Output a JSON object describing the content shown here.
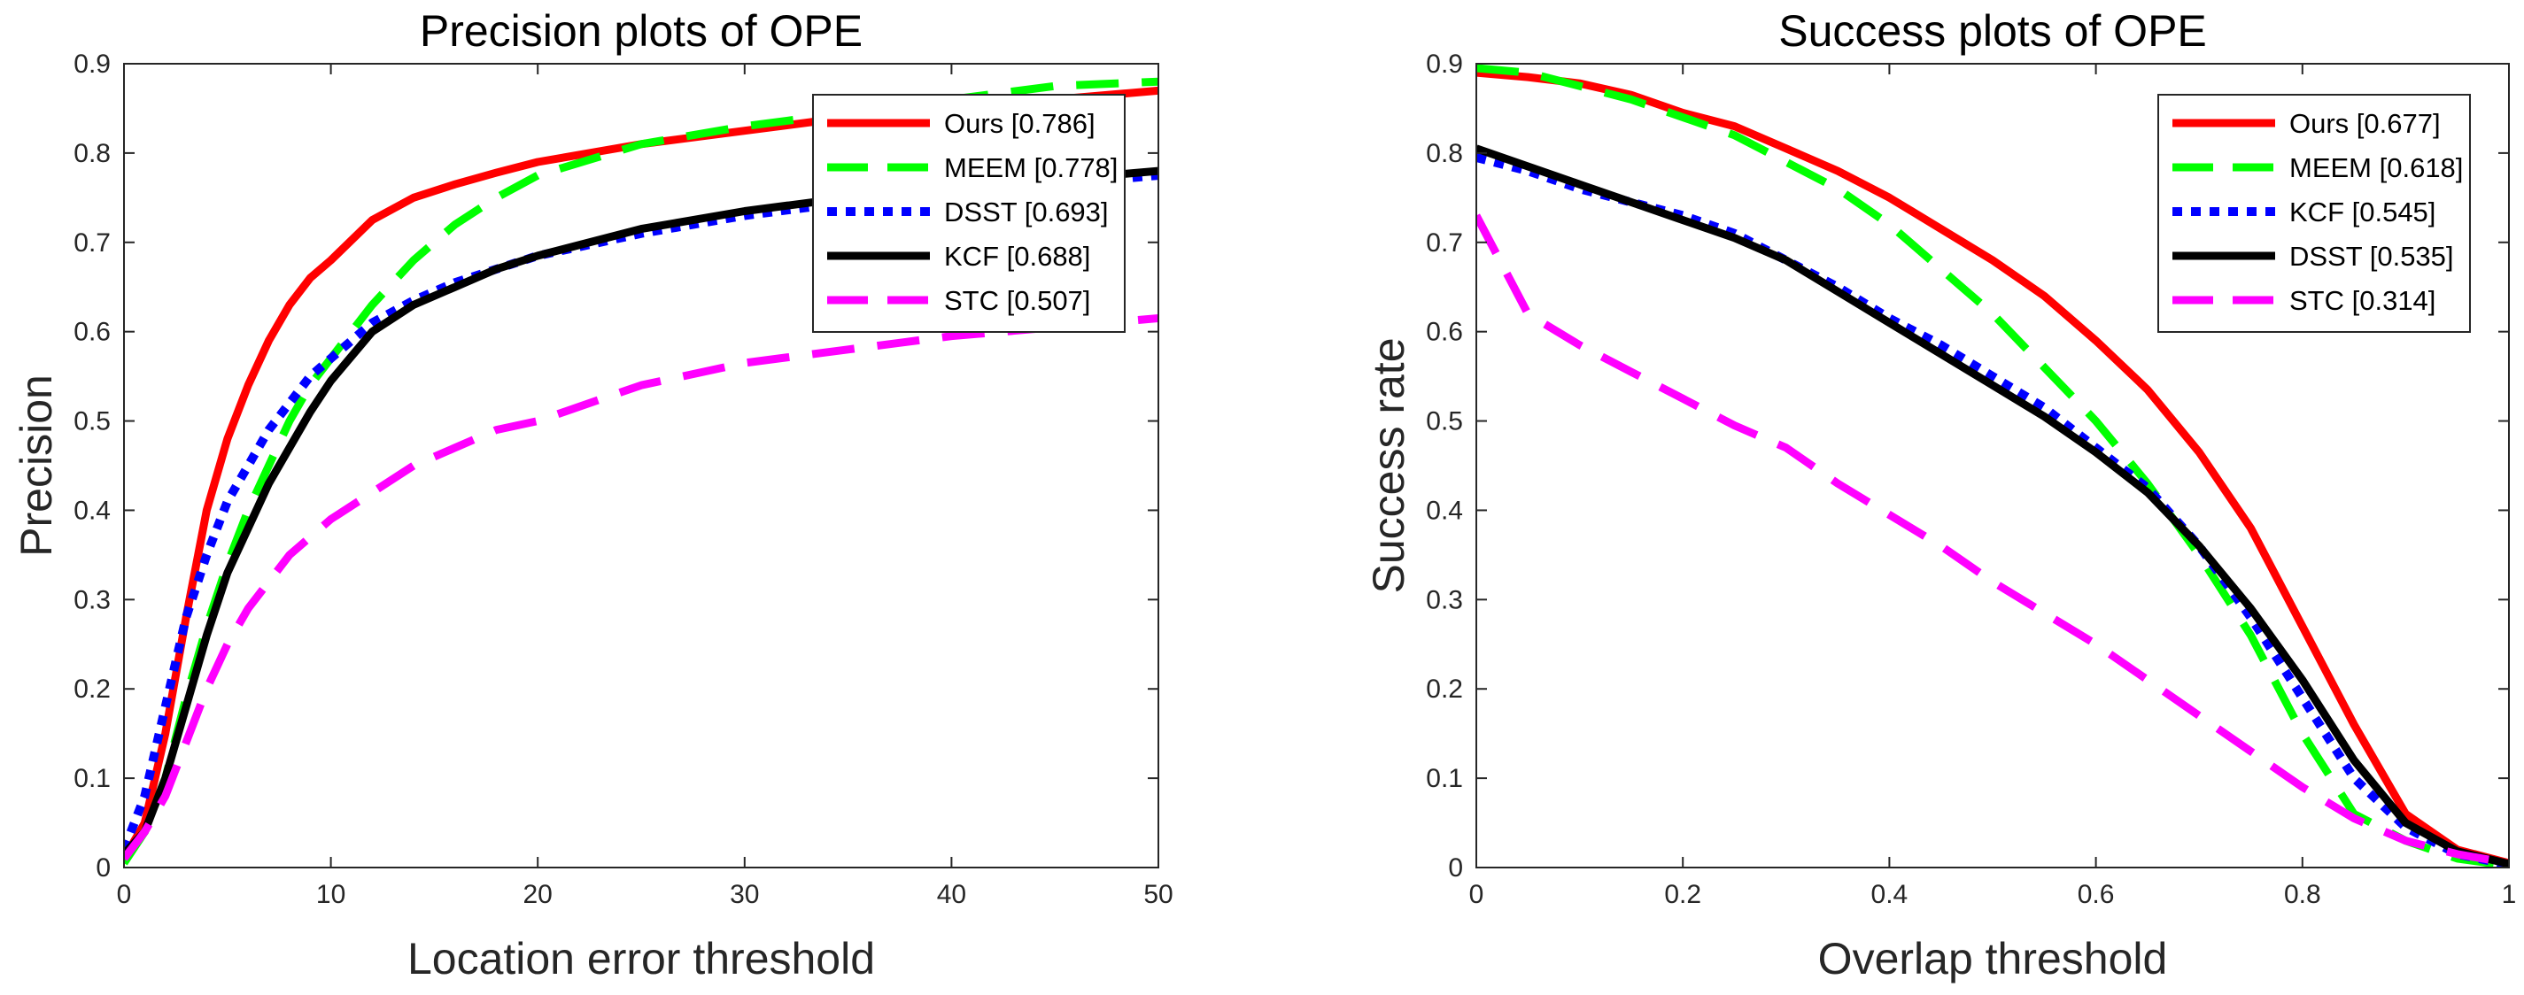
{
  "chart_data": [
    {
      "type": "line",
      "title": "Precision plots of OPE",
      "xlabel": "Location error threshold",
      "ylabel": "Precision",
      "xlim": [
        0,
        50
      ],
      "ylim": [
        0,
        0.9
      ],
      "xticks": [
        0,
        10,
        20,
        30,
        40,
        50
      ],
      "yticks": [
        0,
        0.1,
        0.2,
        0.3,
        0.4,
        0.5,
        0.6,
        0.7,
        0.8,
        0.9
      ],
      "xtick_labels": [
        "0",
        "10",
        "20",
        "30",
        "40",
        "50"
      ],
      "ytick_labels": [
        "0",
        "0.1",
        "0.2",
        "0.3",
        "0.4",
        "0.5",
        "0.6",
        "0.7",
        "0.8",
        "0.9"
      ],
      "grid": false,
      "legend_position": "top-right",
      "series": [
        {
          "name": "Ours",
          "label": "Ours [0.786]",
          "color": "#ff0000",
          "style": "solid",
          "x": [
            0,
            1,
            2,
            3,
            4,
            5,
            6,
            7,
            8,
            9,
            10,
            12,
            14,
            16,
            18,
            20,
            25,
            30,
            35,
            40,
            45,
            50
          ],
          "y": [
            0.01,
            0.05,
            0.15,
            0.28,
            0.4,
            0.48,
            0.54,
            0.59,
            0.63,
            0.66,
            0.68,
            0.725,
            0.75,
            0.765,
            0.778,
            0.79,
            0.81,
            0.825,
            0.84,
            0.85,
            0.86,
            0.87
          ]
        },
        {
          "name": "MEEM",
          "label": "MEEM [0.778]",
          "color": "#00ff00",
          "style": "dash",
          "x": [
            0,
            1,
            2,
            3,
            4,
            5,
            6,
            7,
            8,
            9,
            10,
            12,
            14,
            16,
            18,
            20,
            25,
            30,
            35,
            40,
            45,
            50
          ],
          "y": [
            0.005,
            0.04,
            0.1,
            0.19,
            0.27,
            0.34,
            0.4,
            0.45,
            0.5,
            0.54,
            0.57,
            0.63,
            0.68,
            0.72,
            0.75,
            0.775,
            0.81,
            0.83,
            0.845,
            0.86,
            0.875,
            0.88
          ]
        },
        {
          "name": "DSST",
          "label": "DSST [0.693]",
          "color": "#0000ff",
          "style": "dot",
          "x": [
            0,
            1,
            2,
            3,
            4,
            5,
            6,
            7,
            8,
            9,
            10,
            12,
            14,
            16,
            18,
            20,
            25,
            30,
            35,
            40,
            45,
            50
          ],
          "y": [
            0.02,
            0.08,
            0.18,
            0.28,
            0.35,
            0.41,
            0.45,
            0.49,
            0.52,
            0.55,
            0.57,
            0.61,
            0.635,
            0.655,
            0.67,
            0.685,
            0.71,
            0.73,
            0.745,
            0.755,
            0.765,
            0.775
          ]
        },
        {
          "name": "KCF",
          "label": "KCF [0.688]",
          "color": "#000000",
          "style": "solid",
          "x": [
            0,
            1,
            2,
            3,
            4,
            5,
            6,
            7,
            8,
            9,
            10,
            12,
            14,
            16,
            18,
            20,
            25,
            30,
            35,
            40,
            45,
            50
          ],
          "y": [
            0.015,
            0.04,
            0.1,
            0.18,
            0.26,
            0.33,
            0.38,
            0.43,
            0.47,
            0.51,
            0.545,
            0.6,
            0.63,
            0.65,
            0.67,
            0.685,
            0.715,
            0.735,
            0.75,
            0.76,
            0.77,
            0.78
          ]
        },
        {
          "name": "STC",
          "label": "STC [0.507]",
          "color": "#ff00ff",
          "style": "dash",
          "x": [
            0,
            1,
            2,
            3,
            4,
            5,
            6,
            7,
            8,
            9,
            10,
            12,
            14,
            16,
            18,
            20,
            25,
            30,
            35,
            40,
            45,
            50
          ],
          "y": [
            0.01,
            0.04,
            0.08,
            0.14,
            0.2,
            0.25,
            0.29,
            0.32,
            0.35,
            0.37,
            0.39,
            0.42,
            0.45,
            0.47,
            0.49,
            0.5,
            0.54,
            0.565,
            0.58,
            0.595,
            0.605,
            0.615
          ]
        }
      ]
    },
    {
      "type": "line",
      "title": "Success plots of OPE",
      "xlabel": "Overlap threshold",
      "ylabel": "Success rate",
      "xlim": [
        0,
        1
      ],
      "ylim": [
        0,
        0.9
      ],
      "xticks": [
        0,
        0.2,
        0.4,
        0.6,
        0.8,
        1
      ],
      "yticks": [
        0,
        0.1,
        0.2,
        0.3,
        0.4,
        0.5,
        0.6,
        0.7,
        0.8,
        0.9
      ],
      "xtick_labels": [
        "0",
        "0.2",
        "0.4",
        "0.6",
        "0.8",
        "1"
      ],
      "ytick_labels": [
        "0",
        "0.1",
        "0.2",
        "0.3",
        "0.4",
        "0.5",
        "0.6",
        "0.7",
        "0.8",
        "0.9"
      ],
      "grid": false,
      "legend_position": "top-right",
      "series": [
        {
          "name": "Ours",
          "label": "Ours [0.677]",
          "color": "#ff0000",
          "style": "solid",
          "x": [
            0,
            0.05,
            0.1,
            0.15,
            0.2,
            0.25,
            0.3,
            0.35,
            0.4,
            0.45,
            0.5,
            0.55,
            0.6,
            0.65,
            0.7,
            0.75,
            0.8,
            0.85,
            0.9,
            0.95,
            1
          ],
          "y": [
            0.89,
            0.885,
            0.878,
            0.865,
            0.845,
            0.83,
            0.805,
            0.78,
            0.75,
            0.715,
            0.68,
            0.64,
            0.59,
            0.535,
            0.465,
            0.38,
            0.27,
            0.16,
            0.06,
            0.02,
            0.005
          ]
        },
        {
          "name": "MEEM",
          "label": "MEEM [0.618]",
          "color": "#00ff00",
          "style": "dash",
          "x": [
            0,
            0.05,
            0.1,
            0.15,
            0.2,
            0.25,
            0.3,
            0.35,
            0.4,
            0.45,
            0.5,
            0.55,
            0.6,
            0.65,
            0.7,
            0.75,
            0.8,
            0.85,
            0.9,
            0.95,
            1
          ],
          "y": [
            0.895,
            0.89,
            0.875,
            0.86,
            0.84,
            0.82,
            0.79,
            0.76,
            0.72,
            0.67,
            0.62,
            0.56,
            0.5,
            0.43,
            0.35,
            0.26,
            0.15,
            0.06,
            0.03,
            0.01,
            0.002
          ]
        },
        {
          "name": "KCF",
          "label": "KCF [0.545]",
          "color": "#0000ff",
          "style": "dot",
          "x": [
            0,
            0.05,
            0.1,
            0.15,
            0.2,
            0.25,
            0.3,
            0.35,
            0.4,
            0.45,
            0.5,
            0.55,
            0.6,
            0.65,
            0.7,
            0.75,
            0.8,
            0.85,
            0.9,
            0.95,
            1
          ],
          "y": [
            0.795,
            0.78,
            0.76,
            0.745,
            0.73,
            0.71,
            0.68,
            0.65,
            0.615,
            0.585,
            0.55,
            0.515,
            0.47,
            0.425,
            0.36,
            0.28,
            0.19,
            0.1,
            0.045,
            0.015,
            0.003
          ]
        },
        {
          "name": "DSST",
          "label": "DSST [0.535]",
          "color": "#000000",
          "style": "solid",
          "x": [
            0,
            0.05,
            0.1,
            0.15,
            0.2,
            0.25,
            0.3,
            0.35,
            0.4,
            0.45,
            0.5,
            0.55,
            0.6,
            0.65,
            0.7,
            0.75,
            0.8,
            0.85,
            0.9,
            0.95,
            1
          ],
          "y": [
            0.805,
            0.785,
            0.765,
            0.745,
            0.725,
            0.705,
            0.68,
            0.645,
            0.61,
            0.575,
            0.54,
            0.505,
            0.465,
            0.42,
            0.36,
            0.29,
            0.21,
            0.12,
            0.05,
            0.018,
            0.004
          ]
        },
        {
          "name": "STC",
          "label": "STC [0.314]",
          "color": "#ff00ff",
          "style": "dash",
          "x": [
            0,
            0.05,
            0.1,
            0.15,
            0.2,
            0.25,
            0.3,
            0.35,
            0.4,
            0.45,
            0.5,
            0.55,
            0.6,
            0.65,
            0.7,
            0.75,
            0.8,
            0.85,
            0.9,
            0.95,
            1
          ],
          "y": [
            0.73,
            0.62,
            0.585,
            0.555,
            0.525,
            0.495,
            0.47,
            0.43,
            0.395,
            0.36,
            0.32,
            0.285,
            0.25,
            0.21,
            0.17,
            0.13,
            0.09,
            0.055,
            0.03,
            0.015,
            0.005
          ]
        }
      ]
    }
  ]
}
